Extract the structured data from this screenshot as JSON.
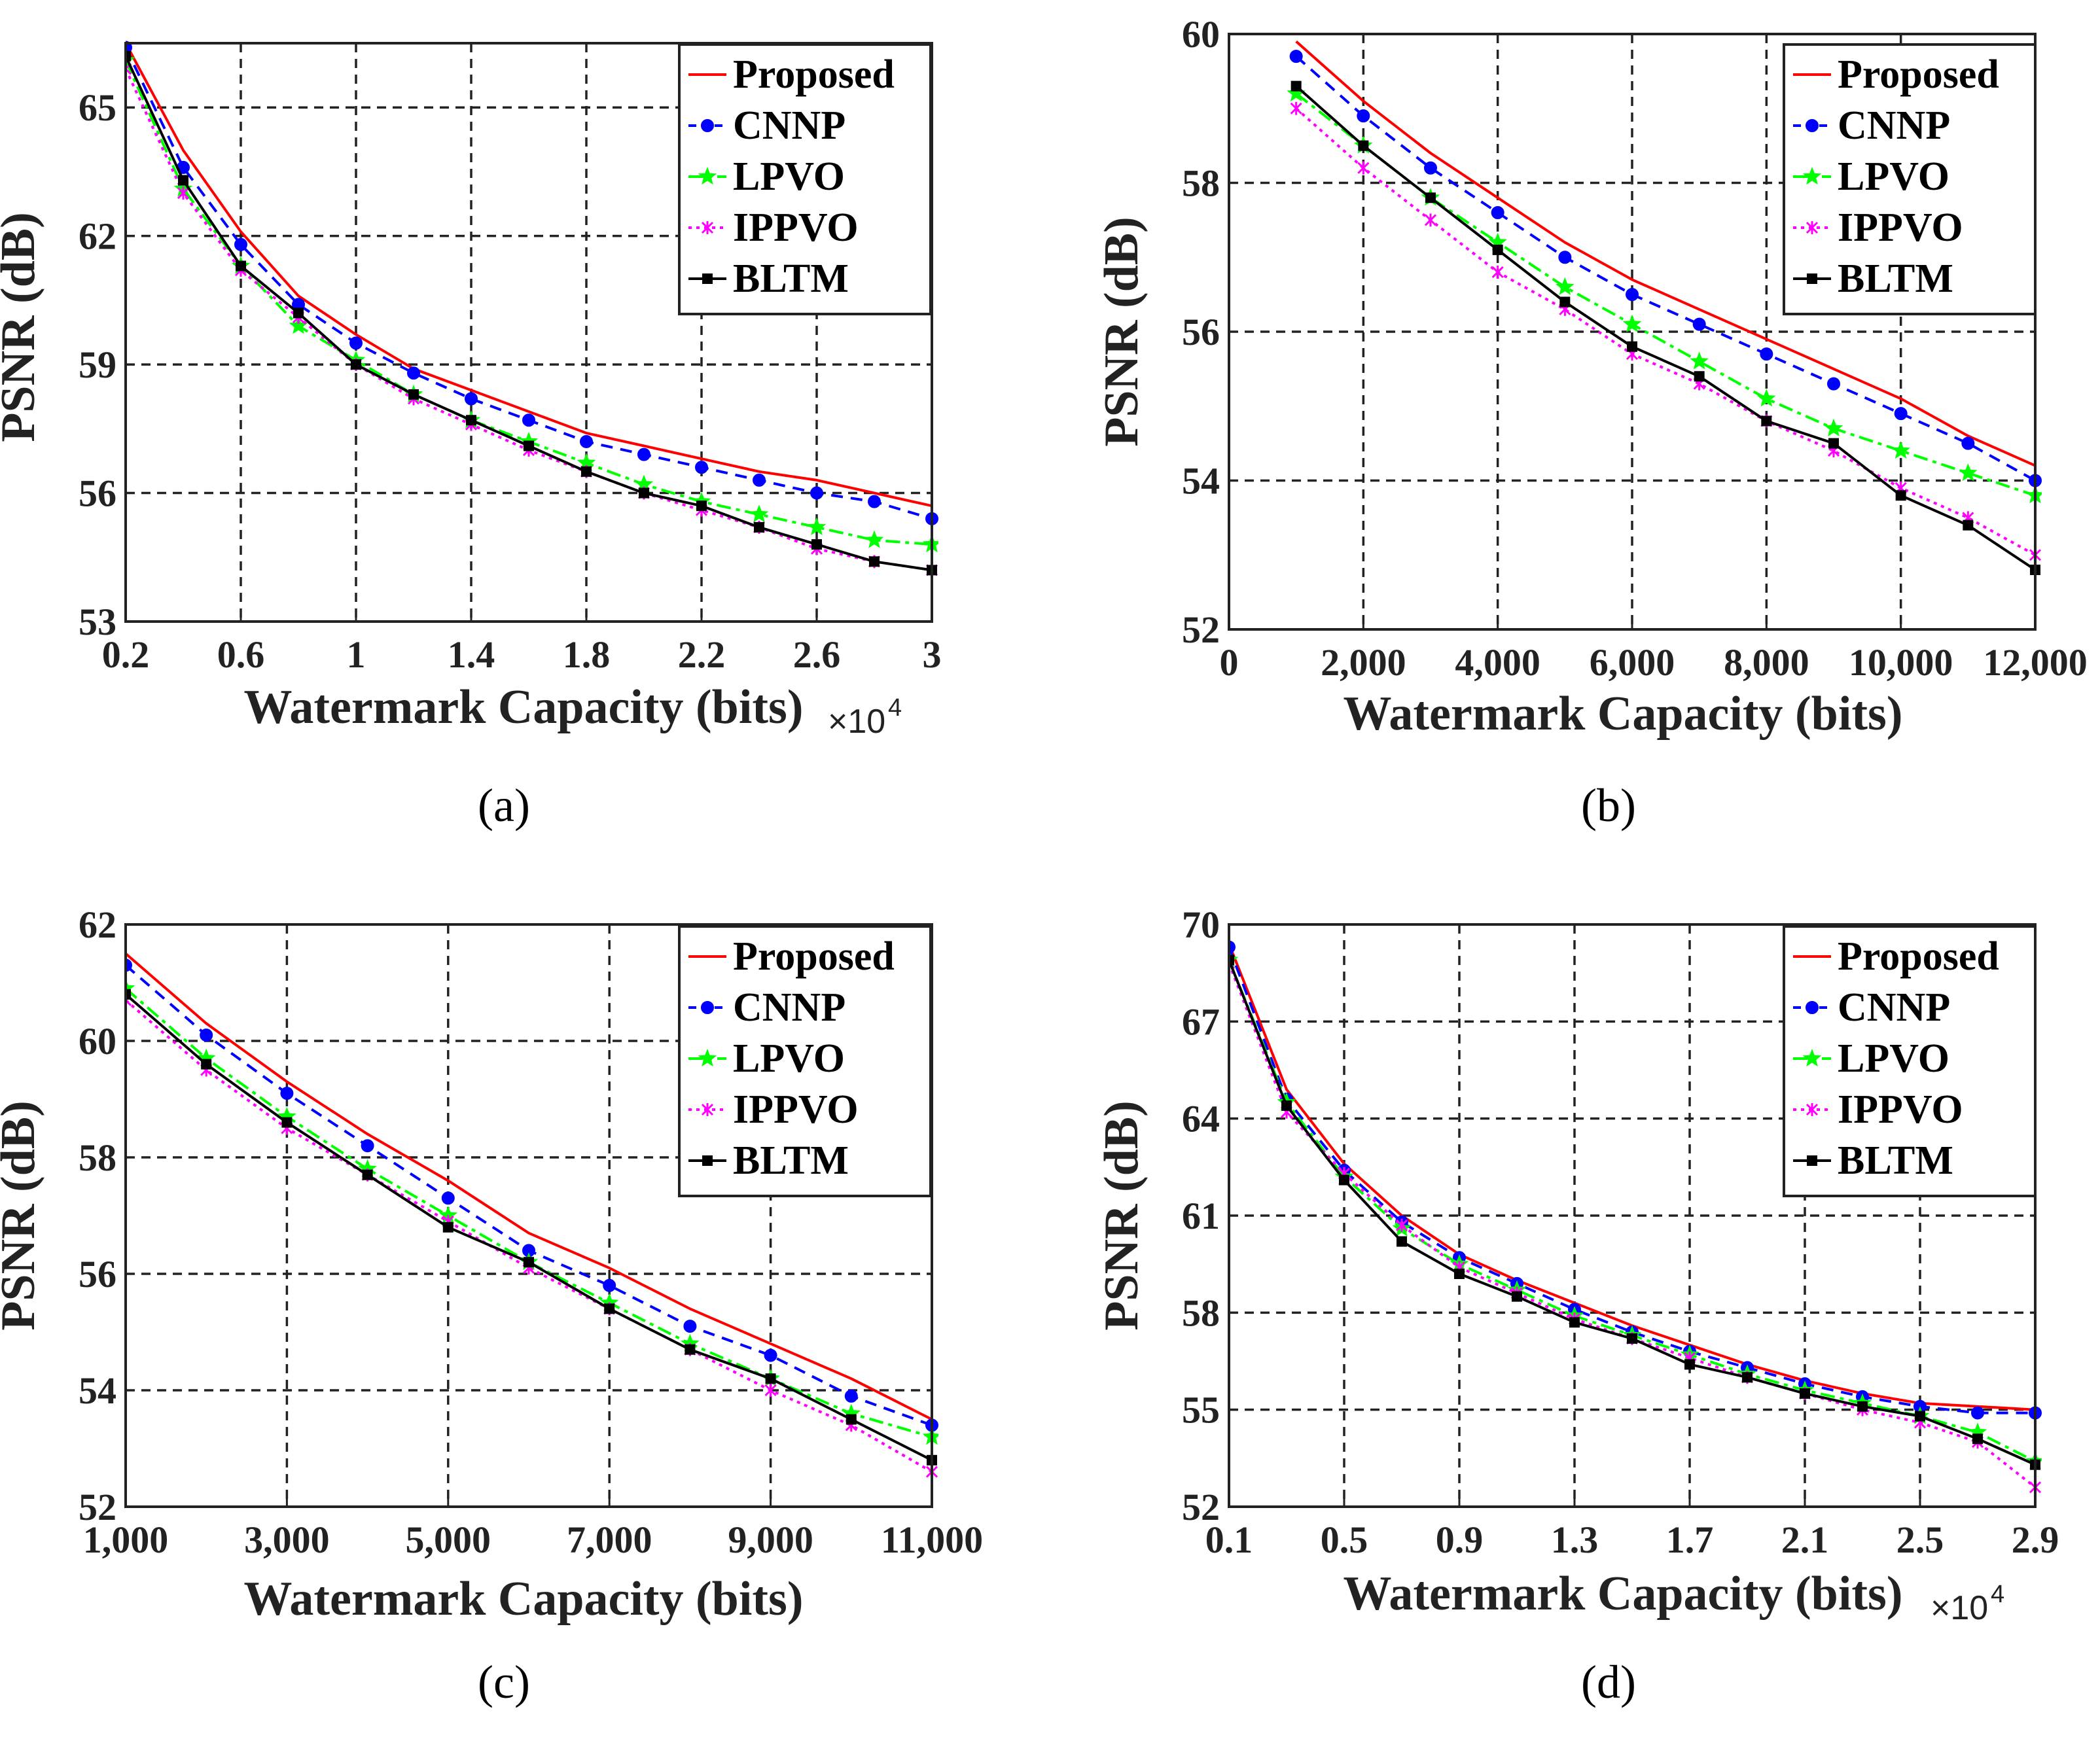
{
  "figure": {
    "colors": {
      "Proposed": "#ff0000",
      "CNNP": "#0000ff",
      "LPVO": "#00ff00",
      "IPPVO": "#ff00ff",
      "BLTM": "#000000"
    },
    "styles": {
      "Proposed": {
        "dash": "",
        "marker": "none"
      },
      "CNNP": {
        "dash": "18 12",
        "marker": "circle"
      },
      "LPVO": {
        "dash": "22 8 6 8",
        "marker": "star"
      },
      "IPPVO": {
        "dash": "5 7",
        "marker": "cross"
      },
      "BLTM": {
        "dash": "",
        "marker": "square"
      }
    }
  },
  "chart_data": [
    {
      "id": "a",
      "type": "line",
      "caption": "(a)",
      "xlabel": "Watermark Capacity (bits)",
      "x_multiplier": "×10",
      "x_multiplier_exp": "4",
      "ylabel": "PSNR (dB)",
      "xlim": [
        0.2,
        3
      ],
      "ylim": [
        53,
        66.5
      ],
      "xticks": [
        0.2,
        0.6,
        1,
        1.4,
        1.8,
        2.2,
        2.6,
        3
      ],
      "xtick_labels": [
        "0.2",
        "0.6",
        "1",
        "1.4",
        "1.8",
        "2.2",
        "2.6",
        "3"
      ],
      "yticks": [
        53,
        56,
        59,
        62,
        65
      ],
      "ytick_labels": [
        "53",
        "56",
        "59",
        "62",
        "65"
      ],
      "legend": [
        "Proposed",
        "CNNP",
        "LPVO",
        "IPPVO",
        "BLTM"
      ],
      "legend_position": "top-right",
      "x": [
        0.2,
        0.4,
        0.6,
        0.8,
        1.0,
        1.2,
        1.4,
        1.6,
        1.8,
        2.0,
        2.2,
        2.4,
        2.6,
        2.8,
        3.0
      ],
      "series": [
        {
          "name": "Proposed",
          "values": [
            66.5,
            64.0,
            62.1,
            60.6,
            59.7,
            58.9,
            58.4,
            57.9,
            57.4,
            57.1,
            56.8,
            56.5,
            56.3,
            56.0,
            55.7
          ]
        },
        {
          "name": "CNNP",
          "values": [
            66.4,
            63.6,
            61.8,
            60.4,
            59.5,
            58.8,
            58.2,
            57.7,
            57.2,
            56.9,
            56.6,
            56.3,
            56.0,
            55.8,
            55.4
          ]
        },
        {
          "name": "LPVO",
          "values": [
            66.1,
            63.1,
            61.3,
            59.9,
            59.1,
            58.3,
            57.7,
            57.2,
            56.7,
            56.2,
            55.8,
            55.5,
            55.2,
            54.9,
            54.8
          ]
        },
        {
          "name": "IPPVO",
          "values": [
            65.9,
            63.0,
            61.2,
            60.1,
            59.0,
            58.2,
            57.6,
            57.0,
            56.5,
            56.0,
            55.6,
            55.2,
            54.7,
            54.4,
            54.2
          ]
        },
        {
          "name": "BLTM",
          "values": [
            66.2,
            63.3,
            61.3,
            60.2,
            59.0,
            58.3,
            57.7,
            57.1,
            56.5,
            56.0,
            55.7,
            55.2,
            54.8,
            54.4,
            54.2
          ]
        }
      ]
    },
    {
      "id": "b",
      "type": "line",
      "caption": "(b)",
      "xlabel": "Watermark Capacity (bits)",
      "x_multiplier": "",
      "x_multiplier_exp": "",
      "ylabel": "PSNR (dB)",
      "xlim": [
        0,
        12000
      ],
      "ylim": [
        52,
        60
      ],
      "xticks": [
        0,
        2000,
        4000,
        6000,
        8000,
        10000,
        12000
      ],
      "xtick_labels": [
        "0",
        "2,000",
        "4,000",
        "6,000",
        "8,000",
        "10,000",
        "12,000"
      ],
      "yticks": [
        52,
        54,
        56,
        58,
        60
      ],
      "ytick_labels": [
        "52",
        "54",
        "56",
        "58",
        "60"
      ],
      "legend": [
        "Proposed",
        "CNNP",
        "LPVO",
        "IPPVO",
        "BLTM"
      ],
      "legend_position": "top-right",
      "x": [
        1000,
        2000,
        3000,
        4000,
        5000,
        6000,
        7000,
        8000,
        9000,
        10000,
        11000,
        12000
      ],
      "series": [
        {
          "name": "Proposed",
          "values": [
            59.9,
            59.1,
            58.4,
            57.8,
            57.2,
            56.7,
            56.3,
            55.9,
            55.5,
            55.1,
            54.6,
            54.2
          ]
        },
        {
          "name": "CNNP",
          "values": [
            59.7,
            58.9,
            58.2,
            57.6,
            57.0,
            56.5,
            56.1,
            55.7,
            55.3,
            54.9,
            54.5,
            54.0
          ]
        },
        {
          "name": "LPVO",
          "values": [
            59.2,
            58.5,
            57.8,
            57.2,
            56.6,
            56.1,
            55.6,
            55.1,
            54.7,
            54.4,
            54.1,
            53.8
          ]
        },
        {
          "name": "IPPVO",
          "values": [
            59.0,
            58.2,
            57.5,
            56.8,
            56.3,
            55.7,
            55.3,
            54.8,
            54.4,
            53.9,
            53.5,
            53.0
          ]
        },
        {
          "name": "BLTM",
          "values": [
            59.3,
            58.5,
            57.8,
            57.1,
            56.4,
            55.8,
            55.4,
            54.8,
            54.5,
            53.8,
            53.4,
            52.8
          ]
        }
      ]
    },
    {
      "id": "c",
      "type": "line",
      "caption": "(c)",
      "xlabel": "Watermark Capacity (bits)",
      "x_multiplier": "",
      "x_multiplier_exp": "",
      "ylabel": "PSNR (dB)",
      "xlim": [
        1000,
        11000
      ],
      "ylim": [
        52,
        62
      ],
      "xticks": [
        1000,
        3000,
        5000,
        7000,
        9000,
        11000
      ],
      "xtick_labels": [
        "1,000",
        "3,000",
        "5,000",
        "7,000",
        "9,000",
        "11,000"
      ],
      "yticks": [
        52,
        54,
        56,
        58,
        60,
        62
      ],
      "ytick_labels": [
        "52",
        "54",
        "56",
        "58",
        "60",
        "62"
      ],
      "legend": [
        "Proposed",
        "CNNP",
        "LPVO",
        "IPPVO",
        "BLTM"
      ],
      "legend_position": "top-right",
      "x": [
        1000,
        2000,
        3000,
        4000,
        5000,
        6000,
        7000,
        8000,
        9000,
        10000,
        11000
      ],
      "series": [
        {
          "name": "Proposed",
          "values": [
            61.5,
            60.3,
            59.3,
            58.4,
            57.6,
            56.7,
            56.1,
            55.4,
            54.8,
            54.2,
            53.5
          ]
        },
        {
          "name": "CNNP",
          "values": [
            61.3,
            60.1,
            59.1,
            58.2,
            57.3,
            56.4,
            55.8,
            55.1,
            54.6,
            53.9,
            53.4
          ]
        },
        {
          "name": "LPVO",
          "values": [
            60.9,
            59.7,
            58.7,
            57.8,
            57.0,
            56.2,
            55.5,
            54.8,
            54.2,
            53.6,
            53.2
          ]
        },
        {
          "name": "IPPVO",
          "values": [
            60.7,
            59.5,
            58.5,
            57.7,
            56.9,
            56.1,
            55.4,
            54.7,
            54.0,
            53.4,
            52.6
          ]
        },
        {
          "name": "BLTM",
          "values": [
            60.8,
            59.6,
            58.6,
            57.7,
            56.8,
            56.2,
            55.4,
            54.7,
            54.2,
            53.5,
            52.8
          ]
        }
      ]
    },
    {
      "id": "d",
      "type": "line",
      "caption": "(d)",
      "xlabel": "Watermark Capacity (bits)",
      "x_multiplier": "×10",
      "x_multiplier_exp": "4",
      "ylabel": "PSNR (dB)",
      "xlim": [
        0.1,
        2.9
      ],
      "ylim": [
        52,
        70
      ],
      "xticks": [
        0.1,
        0.5,
        0.9,
        1.3,
        1.7,
        2.1,
        2.5,
        2.9
      ],
      "xtick_labels": [
        "0.1",
        "0.5",
        "0.9",
        "1.3",
        "1.7",
        "2.1",
        "2.5",
        "2.9"
      ],
      "yticks": [
        52,
        55,
        58,
        61,
        64,
        67,
        70
      ],
      "ytick_labels": [
        "52",
        "55",
        "58",
        "61",
        "64",
        "67",
        "70"
      ],
      "legend": [
        "Proposed",
        "CNNP",
        "LPVO",
        "IPPVO",
        "BLTM"
      ],
      "legend_position": "top-right",
      "x": [
        0.1,
        0.3,
        0.5,
        0.7,
        0.9,
        1.1,
        1.3,
        1.5,
        1.7,
        1.9,
        2.1,
        2.3,
        2.5,
        2.7,
        2.9
      ],
      "series": [
        {
          "name": "Proposed",
          "values": [
            69.4,
            64.9,
            62.6,
            61.0,
            59.8,
            59.0,
            58.3,
            57.6,
            57.0,
            56.4,
            55.9,
            55.5,
            55.2,
            55.1,
            55.0
          ]
        },
        {
          "name": "CNNP",
          "values": [
            69.3,
            64.6,
            62.4,
            60.8,
            59.7,
            58.9,
            58.1,
            57.4,
            56.8,
            56.3,
            55.8,
            55.4,
            55.1,
            54.9,
            54.9
          ]
        },
        {
          "name": "LPVO",
          "values": [
            68.9,
            64.5,
            62.2,
            60.6,
            59.5,
            58.7,
            57.9,
            57.3,
            56.7,
            56.1,
            55.6,
            55.2,
            54.8,
            54.3,
            53.4
          ]
        },
        {
          "name": "IPPVO",
          "values": [
            68.8,
            64.2,
            62.3,
            60.7,
            59.4,
            58.6,
            57.8,
            57.2,
            56.6,
            56.0,
            55.5,
            55.0,
            54.6,
            54.0,
            52.6
          ]
        },
        {
          "name": "BLTM",
          "values": [
            68.9,
            64.4,
            62.1,
            60.2,
            59.2,
            58.5,
            57.7,
            57.2,
            56.4,
            56.0,
            55.5,
            55.1,
            54.8,
            54.1,
            53.3
          ]
        }
      ]
    }
  ]
}
